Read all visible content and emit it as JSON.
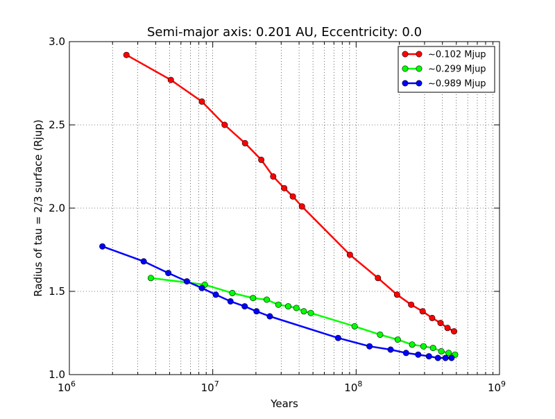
{
  "chart_data": {
    "type": "line",
    "title": "Semi-major axis: 0.201 AU, Eccentricity: 0.0",
    "xlabel": "Years",
    "ylabel": "Radius of tau = 2/3 surface (Rjup)",
    "xscale": "log",
    "xlim": [
      1000000,
      1000000000
    ],
    "ylim": [
      1.0,
      3.0
    ],
    "x_ticks": [
      {
        "base": "10",
        "exp": "6"
      },
      {
        "base": "10",
        "exp": "7"
      },
      {
        "base": "10",
        "exp": "8"
      },
      {
        "base": "10",
        "exp": "9"
      }
    ],
    "y_ticks": [
      "1.0",
      "1.5",
      "2.0",
      "2.5",
      "3.0"
    ],
    "grid": "dotted, major and minor on x, major on y",
    "legend_position": "top-right",
    "series": [
      {
        "name": "~0.102 Mjup",
        "color": "#ff0000",
        "points": [
          [
            2500000,
            2.92
          ],
          [
            5100000,
            2.77
          ],
          [
            8400000,
            2.64
          ],
          [
            12100000,
            2.5
          ],
          [
            16800000,
            2.39
          ],
          [
            21800000,
            2.29
          ],
          [
            26400000,
            2.19
          ],
          [
            31500000,
            2.12
          ],
          [
            36200000,
            2.07
          ],
          [
            41900000,
            2.01
          ],
          [
            90500000,
            1.72
          ],
          [
            142000000,
            1.58
          ],
          [
            193000000,
            1.48
          ],
          [
            242000000,
            1.42
          ],
          [
            291000000,
            1.38
          ],
          [
            339000000,
            1.34
          ],
          [
            388000000,
            1.31
          ],
          [
            434000000,
            1.28
          ],
          [
            482000000,
            1.26
          ]
        ]
      },
      {
        "name": "~0.299 Mjup",
        "color": "#00ff00",
        "points": [
          [
            3700000,
            1.58
          ],
          [
            8800000,
            1.54
          ],
          [
            13700000,
            1.49
          ],
          [
            19100000,
            1.46
          ],
          [
            23800000,
            1.45
          ],
          [
            28700000,
            1.42
          ],
          [
            33600000,
            1.41
          ],
          [
            38300000,
            1.4
          ],
          [
            43200000,
            1.38
          ],
          [
            48300000,
            1.37
          ],
          [
            97600000,
            1.29
          ],
          [
            147000000,
            1.24
          ],
          [
            195000000,
            1.21
          ],
          [
            246000000,
            1.18
          ],
          [
            295000000,
            1.17
          ],
          [
            344000000,
            1.16
          ],
          [
            393000000,
            1.14
          ],
          [
            442000000,
            1.13
          ],
          [
            490000000,
            1.12
          ]
        ]
      },
      {
        "name": "~0.989 Mjup",
        "color": "#0000ff",
        "points": [
          [
            1700000,
            1.77
          ],
          [
            3300000,
            1.68
          ],
          [
            4900000,
            1.61
          ],
          [
            6600000,
            1.56
          ],
          [
            8400000,
            1.52
          ],
          [
            10500000,
            1.48
          ],
          [
            13300000,
            1.44
          ],
          [
            16700000,
            1.41
          ],
          [
            20200000,
            1.38
          ],
          [
            25000000,
            1.35
          ],
          [
            74900000,
            1.22
          ],
          [
            124000000,
            1.17
          ],
          [
            174000000,
            1.15
          ],
          [
            223000000,
            1.13
          ],
          [
            271000000,
            1.12
          ],
          [
            322000000,
            1.11
          ],
          [
            372000000,
            1.1
          ],
          [
            420000000,
            1.1
          ],
          [
            463000000,
            1.1
          ]
        ]
      }
    ]
  }
}
